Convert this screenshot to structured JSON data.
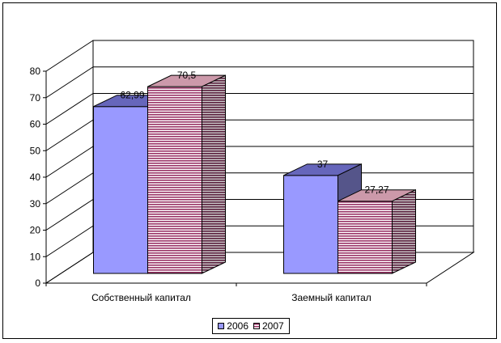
{
  "chart_data": {
    "type": "bar",
    "categories": [
      "Собственный капитал",
      "Заемный капитал"
    ],
    "series": [
      {
        "name": "2006",
        "values": [
          62.99,
          37
        ],
        "labels": [
          "62,99",
          "37"
        ],
        "color": "#9999ff"
      },
      {
        "name": "2007",
        "values": [
          70.5,
          27.27
        ],
        "labels": [
          "70,5",
          "27,27"
        ],
        "color": "#993366"
      }
    ],
    "ylim": [
      0,
      80
    ],
    "yticks": [
      "0",
      "10",
      "20",
      "30",
      "40",
      "50",
      "60",
      "70",
      "80"
    ],
    "grid": true,
    "legend_position": "bottom"
  }
}
